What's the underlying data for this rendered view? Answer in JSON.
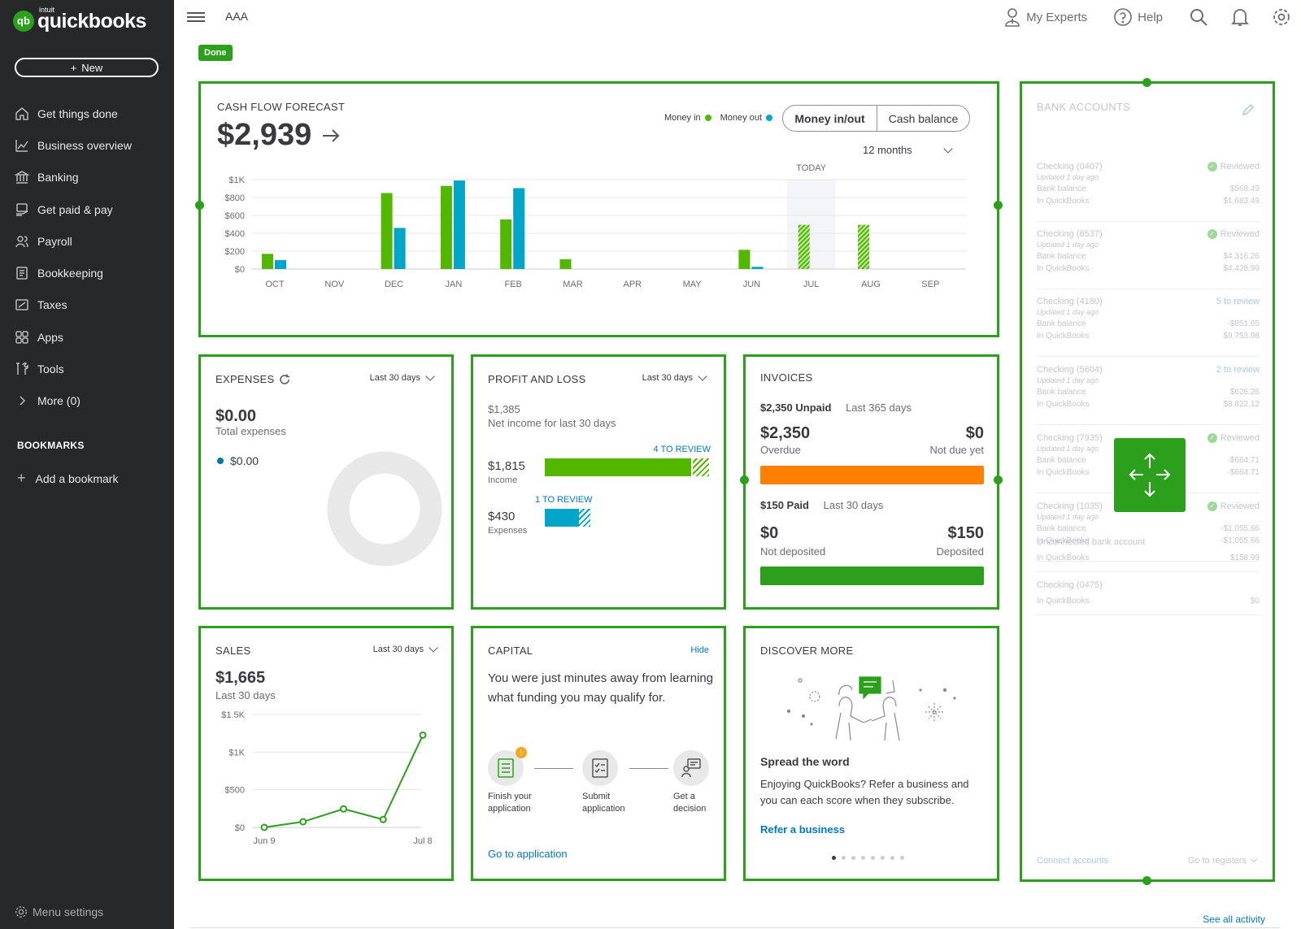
{
  "brand": {
    "small": "intuit",
    "name": "quickbooks",
    "mark": "qb"
  },
  "sidebar": {
    "new_label": "New",
    "items": [
      {
        "label": "Get things done",
        "icon": "home-icon"
      },
      {
        "label": "Business overview",
        "icon": "chart-line-icon"
      },
      {
        "label": "Banking",
        "icon": "bank-icon"
      },
      {
        "label": "Get paid & pay",
        "icon": "hand-money-icon"
      },
      {
        "label": "Payroll",
        "icon": "people-icon"
      },
      {
        "label": "Bookkeeping",
        "icon": "ledger-icon"
      },
      {
        "label": "Taxes",
        "icon": "tax-icon"
      },
      {
        "label": "Apps",
        "icon": "apps-grid-icon"
      },
      {
        "label": "Tools",
        "icon": "tools-icon"
      },
      {
        "label": "More (0)",
        "icon": "chevron-right-icon"
      }
    ],
    "bookmarks_heading": "BOOKMARKS",
    "add_bookmark": "Add a bookmark",
    "menu_settings": "Menu settings"
  },
  "topbar": {
    "company": "AAA",
    "my_experts": "My Experts",
    "help": "Help"
  },
  "done_label": "Done",
  "cashflow": {
    "title": "CASH FLOW FORECAST",
    "amount": "$2,939",
    "legend_in": "Money in",
    "legend_out": "Money out",
    "toggle_a": "Money in/out",
    "toggle_b": "Cash balance",
    "period": "12 months",
    "today_label": "TODAY",
    "colors": {
      "money_in": "#53b700",
      "money_out": "#00a6c8"
    }
  },
  "chart_data": [
    {
      "type": "bar",
      "title": "CASH FLOW FORECAST",
      "categories": [
        "OCT",
        "NOV",
        "DEC",
        "JAN",
        "FEB",
        "MAR",
        "APR",
        "MAY",
        "JUN",
        "JUL",
        "AUG",
        "SEP"
      ],
      "yticks": [
        "$0",
        "$200",
        "$400",
        "$600",
        "$800",
        "$1K"
      ],
      "ylim": [
        0,
        1000
      ],
      "series": [
        {
          "name": "Money in",
          "values": [
            170,
            0,
            850,
            930,
            555,
            110,
            0,
            0,
            215,
            495,
            495,
            0
          ]
        },
        {
          "name": "Money out",
          "values": [
            100,
            0,
            460,
            990,
            905,
            0,
            0,
            0,
            25,
            0,
            0,
            0
          ]
        }
      ],
      "forecast_from": "JUL"
    },
    {
      "type": "line",
      "title": "SALES",
      "yticks": [
        "$0",
        "$500",
        "$1K",
        "$1.5K"
      ],
      "ylim": [
        0,
        1500
      ],
      "x_labels": [
        "Jun 9",
        "Jul 8"
      ],
      "series": [
        {
          "values": [
            0,
            75,
            245,
            105,
            1225
          ]
        }
      ]
    }
  ],
  "expenses": {
    "title": "EXPENSES",
    "period": "Last 30 days",
    "amount": "$0.00",
    "label": "Total expenses",
    "legend_value": "$0.00"
  },
  "profit_loss": {
    "title": "PROFIT AND LOSS",
    "period": "Last 30 days",
    "net": "$1,385",
    "net_label": "Net income for last 30 days",
    "income_review": "4 TO REVIEW",
    "income": "$1,815",
    "income_label": "Income",
    "income_fill": 0.89,
    "expense_review": "1 TO REVIEW",
    "expenses": "$430",
    "expenses_label": "Expenses",
    "expenses_fill": 0.21
  },
  "invoices": {
    "title": "INVOICES",
    "unpaid": "$2,350 Unpaid",
    "unpaid_period": "Last 365 days",
    "overdue_amount": "$2,350",
    "overdue_label": "Overdue",
    "notdue_amount": "$0",
    "notdue_label": "Not due yet",
    "paid": "$150 Paid",
    "paid_period": "Last 30 days",
    "notdeposited_amount": "$0",
    "notdeposited_label": "Not deposited",
    "deposited_amount": "$150",
    "deposited_label": "Deposited",
    "colors": {
      "overdue": "#ff8000",
      "deposited": "#2ca01c"
    }
  },
  "bank": {
    "title": "BANK ACCOUNTS",
    "accounts": [
      {
        "name": "Checking (0407)",
        "status": "Reviewed",
        "updated": "Updated 1 day ago",
        "bank": "$568.49",
        "qb": "$1,683.49"
      },
      {
        "name": "Checking (6537)",
        "status": "Reviewed",
        "updated": "Updated 1 day ago",
        "bank": "$4,316.26",
        "qb": "$4,428.99"
      },
      {
        "name": "Checking (4180)",
        "status": "5 to review",
        "updated": "Updated 1 day ago",
        "bank": "-$851.65",
        "qb": "$9,753.98"
      },
      {
        "name": "Checking (5604)",
        "status": "2 to review",
        "updated": "Updated 1 day ago",
        "bank": "$626.26",
        "qb": "$8,822.12"
      },
      {
        "name": "Checking (7935)",
        "status": "Reviewed",
        "updated": "Updated 1 day ago",
        "bank": "-$664.71",
        "qb": "-$664.71"
      },
      {
        "name": "Checking (1035)",
        "status": "Reviewed",
        "updated": "Updated 1 day ago",
        "bank": "-$1,055.66",
        "qb": "-$1,055.66"
      }
    ],
    "bank_balance_label": "Bank balance",
    "in_qb_label": "In QuickBooks",
    "unconnected": {
      "name": "Unconnected bank account",
      "qb": "$158.99"
    },
    "last": {
      "name": "Checking (0475)",
      "qb": "$0"
    },
    "connect": "Connect accounts",
    "registers": "Go to registers"
  },
  "sales": {
    "title": "SALES",
    "period": "Last 30 days",
    "amount": "$1,665",
    "label": "Last 30 days"
  },
  "capital": {
    "title": "CAPITAL",
    "hide": "Hide",
    "text": "You were just minutes away from learning what funding you may qualify for.",
    "step1": "Finish your application",
    "step2": "Submit application",
    "step3": "Get a decision",
    "cta": "Go to application"
  },
  "discover": {
    "title": "DISCOVER MORE",
    "heading": "Spread the word",
    "text": "Enjoying QuickBooks? Refer a business and you can each score when they subscribe.",
    "cta": "Refer a business",
    "pages": 8,
    "active_page": 1
  },
  "see_all": "See all activity"
}
